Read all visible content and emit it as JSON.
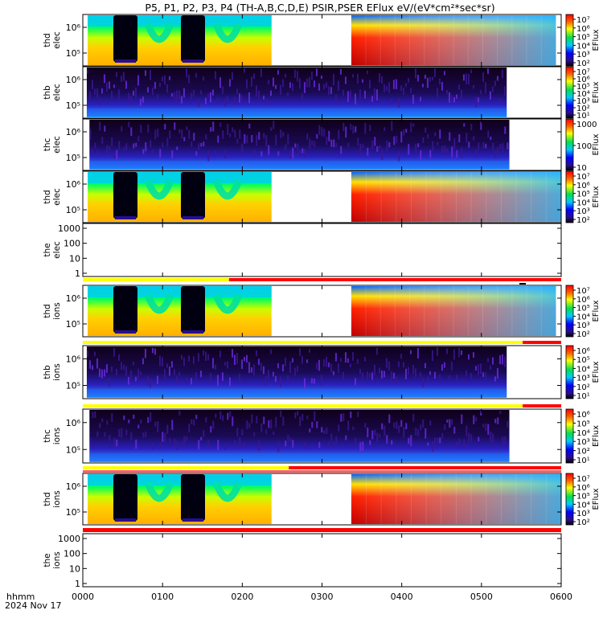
{
  "title": "P5, P1, P2, P3, P4 (TH-A,B,C,D,E) PSIR,PSER EFlux eV/(eV*cm²*sec*sr)",
  "x_axis": {
    "row_label_1": "hhmm",
    "row_label_2": "2024 Nov 17",
    "ticks": [
      "0000",
      "0100",
      "0200",
      "0300",
      "0400",
      "0500",
      "0600"
    ]
  },
  "colorbar_label": "EFlux",
  "chart_data": [
    {
      "type": "heatmap",
      "ylabel": [
        "thd",
        "elec"
      ],
      "yscale": "log",
      "yticks": [
        "10⁶",
        "10⁵"
      ],
      "colorbar": {
        "ticks": [
          "10⁷",
          "10⁶",
          "10⁵",
          "10⁴",
          "10³",
          "10²"
        ],
        "label": "EFlux"
      },
      "gaps_hhmm": [
        [
          "0222",
          "0322"
        ]
      ],
      "data_end_hhmm": "0556"
    },
    {
      "type": "heatmap",
      "ylabel": [
        "thb",
        "elec"
      ],
      "yscale": "log",
      "yticks": [
        "10⁶",
        "10⁵"
      ],
      "colorbar": {
        "ticks": [
          "10⁷",
          "10⁶",
          "10⁵",
          "10⁴",
          "10³",
          "10²",
          "10¹"
        ],
        "label": "EFlux"
      },
      "data_start_hhmm": "0003",
      "data_end_hhmm": "0519"
    },
    {
      "type": "heatmap",
      "ylabel": [
        "thc",
        "elec"
      ],
      "yscale": "log",
      "yticks": [
        "10⁶",
        "10⁵"
      ],
      "colorbar": {
        "ticks": [
          "1000",
          "100",
          "10"
        ],
        "label": "EFlux"
      },
      "data_start_hhmm": "0005",
      "data_end_hhmm": "0521"
    },
    {
      "type": "heatmap",
      "ylabel": [
        "thd",
        "elec"
      ],
      "yscale": "log",
      "yticks": [
        "10⁶",
        "10⁵"
      ],
      "colorbar": {
        "ticks": [
          "10⁷",
          "10⁶",
          "10⁵",
          "10⁴",
          "10³",
          "10²"
        ],
        "label": "EFlux"
      },
      "gaps_hhmm": [
        [
          "0222",
          "0322"
        ]
      ]
    },
    {
      "type": "line",
      "ylabel": [
        "the",
        "elec"
      ],
      "yscale": "log",
      "yticks": [
        "1000",
        "100",
        "10",
        "1"
      ],
      "empty": true
    },
    {
      "type": "heatmap",
      "ylabel": [
        "thd",
        "ions"
      ],
      "yscale": "log",
      "yticks": [
        "10⁶",
        "10⁵"
      ],
      "colorbar": {
        "ticks": [
          "10⁷",
          "10⁶",
          "10⁵",
          "10⁴",
          "10³",
          "10²"
        ],
        "label": "EFlux"
      },
      "gaps_hhmm": [
        [
          "0222",
          "0322"
        ]
      ],
      "data_end_hhmm": "0556"
    },
    {
      "type": "heatmap",
      "ylabel": [
        "thb",
        "ions"
      ],
      "yscale": "log",
      "yticks": [
        "10⁶",
        "10⁵"
      ],
      "colorbar": {
        "ticks": [
          "10⁶",
          "10⁵",
          "10⁴",
          "10³",
          "10²",
          "10¹"
        ],
        "label": "EFlux"
      },
      "data_start_hhmm": "0003",
      "data_end_hhmm": "0519"
    },
    {
      "type": "heatmap",
      "ylabel": [
        "thc",
        "ions"
      ],
      "yscale": "log",
      "yticks": [
        "10⁶",
        "10⁵"
      ],
      "colorbar": {
        "ticks": [
          "10⁶",
          "10⁵",
          "10⁴",
          "10³",
          "10²",
          "10¹"
        ],
        "label": "EFlux"
      },
      "data_start_hhmm": "0005",
      "data_end_hhmm": "0521"
    },
    {
      "type": "heatmap",
      "ylabel": [
        "thd",
        "ions"
      ],
      "yscale": "log",
      "yticks": [
        "10⁶",
        "10⁵"
      ],
      "colorbar": {
        "ticks": [
          "10⁷",
          "10⁶",
          "10⁵",
          "10⁴",
          "10³",
          "10²"
        ],
        "label": "EFlux"
      },
      "gaps_hhmm": [
        [
          "0222",
          "0322"
        ]
      ]
    },
    {
      "type": "line",
      "ylabel": [
        "the",
        "ions"
      ],
      "yscale": "log",
      "yticks": [
        "1000",
        "100",
        "10",
        "1"
      ],
      "empty": true
    }
  ],
  "colors": {
    "yellow": "#ffff00",
    "red": "#ff0000",
    "black": "#000000"
  }
}
